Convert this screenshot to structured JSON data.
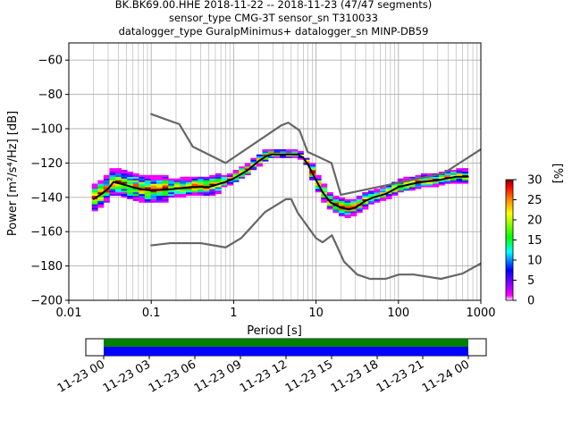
{
  "chart_data": [
    {
      "type": "heatmap",
      "title": [
        "BK.BK69.00.HHE   2018-11-22 -- 2018-11-23  (47/47 segments)",
        "sensor_type CMG-3T sensor_sn T310033",
        "datalogger_type GuralpMinimus+ datalogger_sn MINP-DB59"
      ],
      "xlabel": "Period [s]",
      "ylabel": "Power [m²/s⁴/Hz] [dB]",
      "xscale": "log",
      "xlim": [
        0.01,
        1000
      ],
      "ylim": [
        -200,
        -50
      ],
      "xticks": [
        0.01,
        0.1,
        1,
        10,
        100,
        1000
      ],
      "xtick_labels": [
        "0.01",
        "0.1",
        "1",
        "10",
        "100",
        "1000"
      ],
      "yticks": [
        -200,
        -180,
        -160,
        -140,
        -120,
        -100,
        -80,
        -60
      ],
      "ytick_labels": [
        "−200",
        "−180",
        "−160",
        "−140",
        "−120",
        "−100",
        "−80",
        "−60"
      ],
      "grid": true,
      "series": [
        {
          "role": "mean",
          "color": "#000000",
          "x": [
            0.02,
            0.025,
            0.03,
            0.035,
            0.05,
            0.07,
            0.1,
            0.2,
            0.3,
            0.5,
            0.8,
            1.0,
            1.5,
            2.0,
            2.5,
            3.0,
            4.0,
            5.0,
            6.0,
            7.0,
            8.0,
            10.0,
            12.0,
            15.0,
            20.0,
            25.0,
            30.0,
            40.0,
            50.0,
            70.0,
            100.0,
            150.0,
            200.0,
            300.0,
            500.0,
            700.0
          ],
          "y": [
            -141,
            -138,
            -135,
            -131,
            -133,
            -135,
            -136,
            -135,
            -134,
            -134,
            -131,
            -129,
            -124,
            -119,
            -116,
            -115,
            -115,
            -115,
            -115,
            -117,
            -121,
            -130,
            -137,
            -143,
            -146,
            -147,
            -146,
            -142,
            -140,
            -138,
            -134,
            -132,
            -131,
            -130,
            -128,
            -128
          ]
        },
        {
          "role": "high-noise-model",
          "color": "#666666",
          "x": [
            0.1,
            0.22,
            0.32,
            0.8,
            3.8,
            4.6,
            6.3,
            7.9,
            15.4,
            20.0,
            354.8,
            1000.0
          ],
          "y": [
            -91.5,
            -97.4,
            -110.5,
            -120.0,
            -98.0,
            -96.5,
            -101.0,
            -113.5,
            -120.0,
            -138.5,
            -126.0,
            -112.0
          ]
        },
        {
          "role": "low-noise-model",
          "color": "#666666",
          "x": [
            0.1,
            0.17,
            0.4,
            0.8,
            1.24,
            2.4,
            4.3,
            5.0,
            6.0,
            10.0,
            12.0,
            15.6,
            21.9,
            31.6,
            45.0,
            70.0,
            101.0,
            154.0,
            328.0,
            600.0,
            1000.0
          ],
          "y": [
            -168.0,
            -166.7,
            -166.7,
            -169.2,
            -163.7,
            -148.6,
            -141.1,
            -141.1,
            -149.0,
            -163.8,
            -166.2,
            -162.1,
            -177.5,
            -185.0,
            -187.5,
            -187.5,
            -185.0,
            -185.0,
            -187.5,
            -184.4,
            -178.5
          ]
        }
      ]
    },
    {
      "type": "colorbar",
      "label": "[%]",
      "range": [
        0,
        30
      ],
      "ticks": [
        0,
        5,
        10,
        15,
        20,
        25,
        30
      ],
      "tick_labels": [
        "0",
        "5",
        "10",
        "15",
        "20",
        "25",
        "30"
      ],
      "colors": [
        "#ffffff",
        "#ff00ff",
        "#0000ff",
        "#00ffff",
        "#00ff00",
        "#ffff00",
        "#ff7f00",
        "#ff0000",
        "#7f0000"
      ]
    },
    {
      "type": "timeline",
      "tick_labels": [
        "11-23 00",
        "11-23 03",
        "11-23 06",
        "11-23 09",
        "11-23 12",
        "11-23 15",
        "11-23 18",
        "11-23 21",
        "11-24 00"
      ],
      "coverage_colors": [
        "#008000",
        "#0000ff"
      ]
    }
  ]
}
